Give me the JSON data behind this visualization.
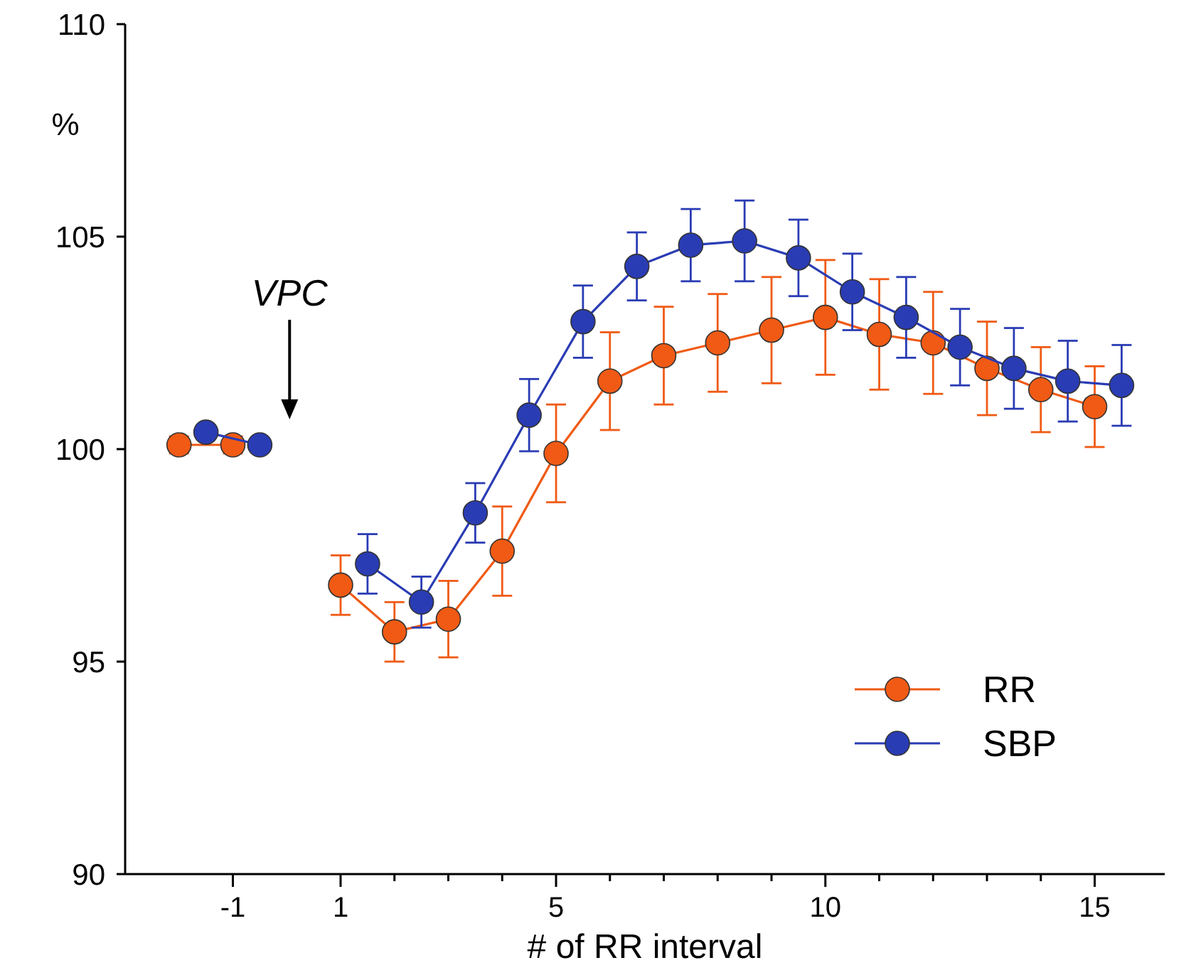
{
  "chart_data": {
    "type": "line",
    "xlabel": "# of RR interval",
    "ylabel": "%",
    "xlim": [
      -3,
      16.3
    ],
    "ylim": [
      90,
      110
    ],
    "xticks": [
      {
        "value": -1,
        "label": "-1"
      },
      {
        "value": 1,
        "label": "1"
      },
      {
        "value": 2,
        "label": null
      },
      {
        "value": 3,
        "label": null
      },
      {
        "value": 4,
        "label": null
      },
      {
        "value": 5,
        "label": "5"
      },
      {
        "value": 6,
        "label": null
      },
      {
        "value": 7,
        "label": null
      },
      {
        "value": 8,
        "label": null
      },
      {
        "value": 9,
        "label": null
      },
      {
        "value": 10,
        "label": "10"
      },
      {
        "value": 11,
        "label": null
      },
      {
        "value": 12,
        "label": null
      },
      {
        "value": 13,
        "label": null
      },
      {
        "value": 14,
        "label": null
      },
      {
        "value": 15,
        "label": "15"
      }
    ],
    "yticks": [
      90,
      95,
      100,
      105,
      110
    ],
    "grid": false,
    "legend": "bottom right",
    "marker": "circle",
    "line_style": "solid",
    "annotations": [
      "VPC"
    ],
    "series": [
      {
        "name": "RR",
        "color": "#f05a14",
        "x": [
          -2,
          -1,
          0,
          1,
          2,
          3,
          4,
          5,
          6,
          7,
          8,
          9,
          10,
          11,
          12,
          13,
          14,
          15
        ],
        "values": [
          100.1,
          100.1,
          null,
          96.8,
          95.7,
          96.0,
          97.6,
          99.9,
          101.6,
          102.2,
          102.5,
          102.8,
          103.1,
          102.7,
          102.5,
          101.9,
          101.4,
          101.0
        ],
        "errors": [
          0.2,
          0.2,
          null,
          0.7,
          0.7,
          0.9,
          1.05,
          1.15,
          1.15,
          1.15,
          1.15,
          1.25,
          1.35,
          1.3,
          1.2,
          1.1,
          1.0,
          0.95
        ]
      },
      {
        "name": "SBP",
        "color": "#2a3cb4",
        "x": [
          -1.5,
          -0.5,
          0.5,
          1.5,
          2.5,
          3.5,
          4.5,
          5.5,
          6.5,
          7.5,
          8.5,
          9.5,
          10.5,
          11.5,
          12.5,
          13.5,
          14.5,
          15.5
        ],
        "values": [
          100.4,
          100.1,
          null,
          97.3,
          96.4,
          98.5,
          100.8,
          103.0,
          104.3,
          104.8,
          104.9,
          104.5,
          103.7,
          103.1,
          102.4,
          101.9,
          101.6,
          101.5
        ],
        "errors": [
          0.15,
          0.15,
          null,
          0.7,
          0.6,
          0.7,
          0.85,
          0.85,
          0.8,
          0.85,
          0.95,
          0.9,
          0.9,
          0.95,
          0.9,
          0.95,
          0.95,
          0.95
        ]
      }
    ]
  }
}
